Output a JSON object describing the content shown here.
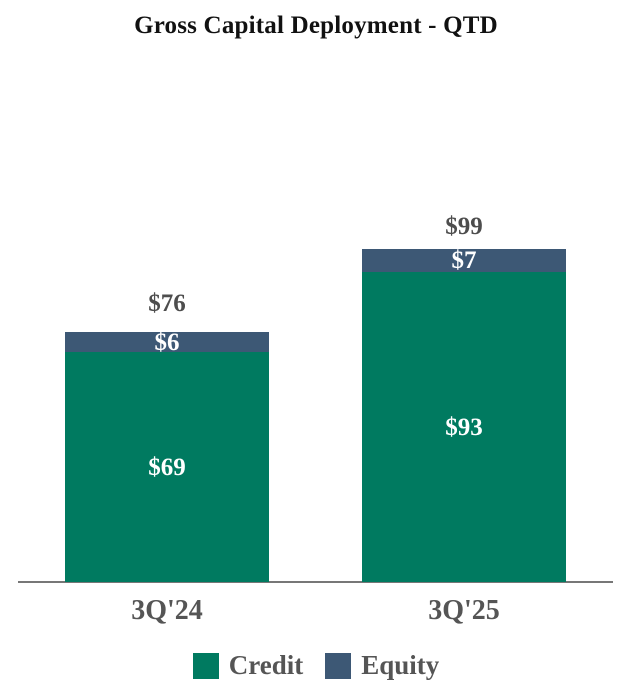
{
  "title": "Gross Capital Deployment - QTD",
  "colors": {
    "credit": "#007A60",
    "equity": "#3D5875",
    "total_label": "#4d4d4d",
    "axis_line": "#777777",
    "inside_label": "#FFFFFF"
  },
  "legend": {
    "position": "bottom",
    "items": [
      {
        "name": "Credit",
        "color_key": "credit"
      },
      {
        "name": "Equity",
        "color_key": "equity"
      }
    ]
  },
  "chart_data": {
    "type": "bar",
    "stacked": true,
    "title": "Gross Capital Deployment - QTD",
    "categories": [
      "3Q'24",
      "3Q'25"
    ],
    "series": [
      {
        "name": "Credit",
        "color_key": "credit",
        "values": [
          69,
          93
        ],
        "labels": [
          "$69",
          "$93"
        ]
      },
      {
        "name": "Equity",
        "color_key": "equity",
        "values": [
          6,
          7
        ],
        "labels": [
          "$6",
          "$7"
        ]
      }
    ],
    "totals": [
      76,
      99
    ],
    "total_labels": [
      "$76",
      "$99"
    ],
    "xlabel": "",
    "ylabel": "",
    "ylim": [
      0,
      110
    ],
    "grid": false,
    "y_axis_visible": false,
    "legend_position": "bottom"
  }
}
